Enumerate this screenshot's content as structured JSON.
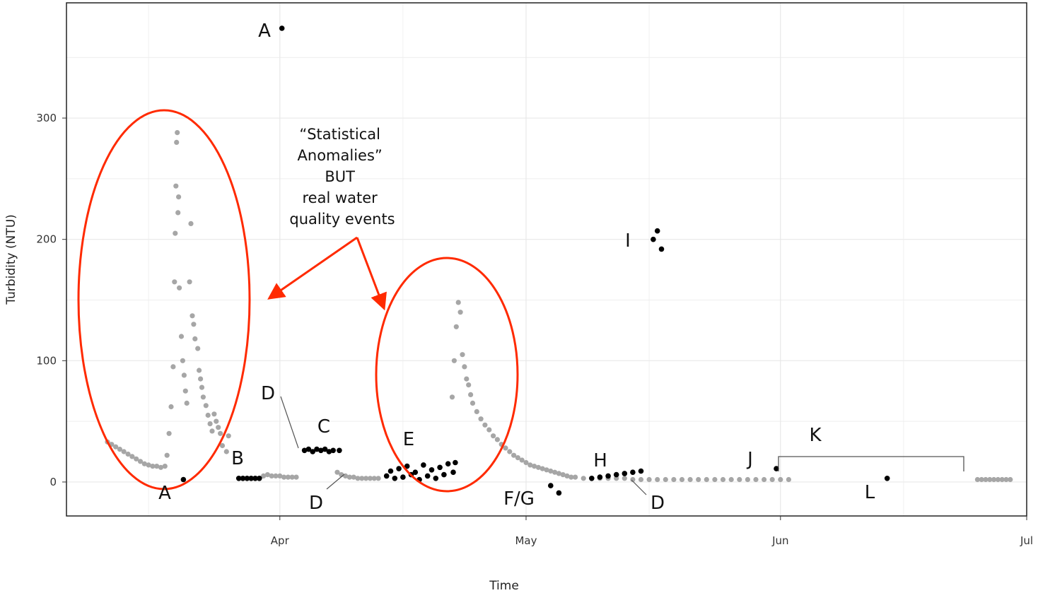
{
  "chart_data": {
    "type": "scatter",
    "xlabel": "Time",
    "ylabel": "Turbidity (NTU)",
    "y_ticks": [
      0,
      100,
      200,
      300
    ],
    "x_ticks": [
      "Apr",
      "May",
      "Jun",
      "Jul"
    ],
    "x_tick_dates": [
      "2018-04-01",
      "2018-05-01",
      "2018-06-01",
      "2018-07-01"
    ],
    "xlim": [
      "2018-03-06",
      "2018-07-01"
    ],
    "ylim": [
      -28,
      395
    ],
    "grid": true,
    "colors": {
      "normal": "#a6a6a6",
      "anomaly": "#000000",
      "highlight": "#ff2a00"
    },
    "series": [
      {
        "role": "normal",
        "color": "#a6a6a6",
        "points": [
          [
            "2018-03-11",
            33
          ],
          [
            "2018-03-11T12:00",
            31
          ],
          [
            "2018-03-12",
            29
          ],
          [
            "2018-03-12T12:00",
            27
          ],
          [
            "2018-03-13",
            25
          ],
          [
            "2018-03-13T12:00",
            23
          ],
          [
            "2018-03-14",
            21
          ],
          [
            "2018-03-14T12:00",
            19
          ],
          [
            "2018-03-15",
            17
          ],
          [
            "2018-03-15T12:00",
            15
          ],
          [
            "2018-03-16",
            14
          ],
          [
            "2018-03-16T12:00",
            13
          ],
          [
            "2018-03-17",
            13
          ],
          [
            "2018-03-17T12:00",
            12
          ],
          [
            "2018-03-18",
            13
          ],
          [
            "2018-03-18T06:00",
            22
          ],
          [
            "2018-03-18T12:00",
            40
          ],
          [
            "2018-03-18T18:00",
            62
          ],
          [
            "2018-03-19",
            95
          ],
          [
            "2018-03-19T04:00",
            165
          ],
          [
            "2018-03-19T06:00",
            205
          ],
          [
            "2018-03-19T08:00",
            244
          ],
          [
            "2018-03-19T10:00",
            280
          ],
          [
            "2018-03-19T12:00",
            288
          ],
          [
            "2018-03-19T14:00",
            222
          ],
          [
            "2018-03-19T16:00",
            235
          ],
          [
            "2018-03-19T18:00",
            160
          ],
          [
            "2018-03-20",
            120
          ],
          [
            "2018-03-20T04:00",
            100
          ],
          [
            "2018-03-20T08:00",
            88
          ],
          [
            "2018-03-20T12:00",
            75
          ],
          [
            "2018-03-20T16:00",
            65
          ],
          [
            "2018-03-21",
            165
          ],
          [
            "2018-03-21T04:00",
            213
          ],
          [
            "2018-03-21T08:00",
            137
          ],
          [
            "2018-03-21T12:00",
            130
          ],
          [
            "2018-03-21T16:00",
            118
          ],
          [
            "2018-03-22",
            110
          ],
          [
            "2018-03-22T04:00",
            92
          ],
          [
            "2018-03-22T08:00",
            85
          ],
          [
            "2018-03-22T12:00",
            78
          ],
          [
            "2018-03-22T16:00",
            70
          ],
          [
            "2018-03-23",
            63
          ],
          [
            "2018-03-23T06:00",
            55
          ],
          [
            "2018-03-23T12:00",
            48
          ],
          [
            "2018-03-23T18:00",
            42
          ],
          [
            "2018-03-24",
            56
          ],
          [
            "2018-03-24T06:00",
            50
          ],
          [
            "2018-03-24T12:00",
            45
          ],
          [
            "2018-03-24T18:00",
            40
          ],
          [
            "2018-03-25",
            30
          ],
          [
            "2018-03-25T12:00",
            25
          ],
          [
            "2018-03-25T18:00",
            38
          ],
          [
            "2018-03-30",
            5
          ],
          [
            "2018-03-30T12:00",
            6
          ],
          [
            "2018-03-31",
            5
          ],
          [
            "2018-03-31T12:00",
            5
          ],
          [
            "2018-04-01",
            5
          ],
          [
            "2018-04-01T12:00",
            4
          ],
          [
            "2018-04-02",
            4
          ],
          [
            "2018-04-02T12:00",
            4
          ],
          [
            "2018-04-03",
            4
          ],
          [
            "2018-04-08",
            8
          ],
          [
            "2018-04-08T12:00",
            6
          ],
          [
            "2018-04-09",
            5
          ],
          [
            "2018-04-09T12:00",
            4
          ],
          [
            "2018-04-10",
            4
          ],
          [
            "2018-04-10T12:00",
            3
          ],
          [
            "2018-04-11",
            3
          ],
          [
            "2018-04-11T12:00",
            3
          ],
          [
            "2018-04-12",
            3
          ],
          [
            "2018-04-12T12:00",
            3
          ],
          [
            "2018-04-13",
            3
          ],
          [
            "2018-04-22",
            70
          ],
          [
            "2018-04-22T06:00",
            100
          ],
          [
            "2018-04-22T12:00",
            128
          ],
          [
            "2018-04-22T18:00",
            148
          ],
          [
            "2018-04-23",
            140
          ],
          [
            "2018-04-23T06:00",
            105
          ],
          [
            "2018-04-23T12:00",
            95
          ],
          [
            "2018-04-23T18:00",
            85
          ],
          [
            "2018-04-24",
            80
          ],
          [
            "2018-04-24T06:00",
            72
          ],
          [
            "2018-04-24T12:00",
            65
          ],
          [
            "2018-04-25",
            58
          ],
          [
            "2018-04-25T12:00",
            52
          ],
          [
            "2018-04-26",
            47
          ],
          [
            "2018-04-26T12:00",
            43
          ],
          [
            "2018-04-27",
            38
          ],
          [
            "2018-04-27T12:00",
            35
          ],
          [
            "2018-04-28",
            31
          ],
          [
            "2018-04-28T12:00",
            28
          ],
          [
            "2018-04-29",
            25
          ],
          [
            "2018-04-29T12:00",
            22
          ],
          [
            "2018-04-30",
            20
          ],
          [
            "2018-04-30T12:00",
            18
          ],
          [
            "2018-05-01",
            16
          ],
          [
            "2018-05-01T12:00",
            14
          ],
          [
            "2018-05-02",
            13
          ],
          [
            "2018-05-02T12:00",
            12
          ],
          [
            "2018-05-03",
            11
          ],
          [
            "2018-05-03T12:00",
            10
          ],
          [
            "2018-05-04",
            9
          ],
          [
            "2018-05-04T12:00",
            8
          ],
          [
            "2018-05-05",
            7
          ],
          [
            "2018-05-05T12:00",
            6
          ],
          [
            "2018-05-06",
            5
          ],
          [
            "2018-05-06T12:00",
            4
          ],
          [
            "2018-05-07",
            4
          ],
          [
            "2018-05-08",
            3
          ],
          [
            "2018-05-09",
            3
          ],
          [
            "2018-05-10",
            3
          ],
          [
            "2018-05-11",
            3
          ],
          [
            "2018-05-12",
            3
          ],
          [
            "2018-05-13",
            3
          ],
          [
            "2018-05-14",
            2
          ],
          [
            "2018-05-15",
            2
          ],
          [
            "2018-05-16",
            2
          ],
          [
            "2018-05-17",
            2
          ],
          [
            "2018-05-18",
            2
          ],
          [
            "2018-05-19",
            2
          ],
          [
            "2018-05-20",
            2
          ],
          [
            "2018-05-21",
            2
          ],
          [
            "2018-05-22",
            2
          ],
          [
            "2018-05-23",
            2
          ],
          [
            "2018-05-24",
            2
          ],
          [
            "2018-05-25",
            2
          ],
          [
            "2018-05-26",
            2
          ],
          [
            "2018-05-27",
            2
          ],
          [
            "2018-05-28",
            2
          ],
          [
            "2018-05-29",
            2
          ],
          [
            "2018-05-30",
            2
          ],
          [
            "2018-05-31",
            2
          ],
          [
            "2018-06-01",
            2
          ],
          [
            "2018-06-02",
            2
          ],
          [
            "2018-06-25",
            2
          ],
          [
            "2018-06-25T12:00",
            2
          ],
          [
            "2018-06-26",
            2
          ],
          [
            "2018-06-26T12:00",
            2
          ],
          [
            "2018-06-27",
            2
          ],
          [
            "2018-06-27T12:00",
            2
          ],
          [
            "2018-06-28",
            2
          ],
          [
            "2018-06-28T12:00",
            2
          ],
          [
            "2018-06-29",
            2
          ]
        ]
      },
      {
        "role": "anomaly",
        "color": "#000000",
        "points": [
          [
            "2018-03-20T06:00",
            2
          ],
          [
            "2018-04-01T06:00",
            374
          ],
          [
            "2018-03-27",
            3
          ],
          [
            "2018-03-27T12:00",
            3
          ],
          [
            "2018-03-28",
            3
          ],
          [
            "2018-03-28T12:00",
            3
          ],
          [
            "2018-03-29",
            3
          ],
          [
            "2018-03-29T12:00",
            3
          ],
          [
            "2018-04-04",
            26
          ],
          [
            "2018-04-04T12:00",
            27
          ],
          [
            "2018-04-05",
            25
          ],
          [
            "2018-04-05T12:00",
            27
          ],
          [
            "2018-04-06",
            26
          ],
          [
            "2018-04-06T12:00",
            27
          ],
          [
            "2018-04-07",
            25
          ],
          [
            "2018-04-07T12:00",
            26
          ],
          [
            "2018-04-08T06:00",
            26
          ],
          [
            "2018-04-14",
            5
          ],
          [
            "2018-04-14T12:00",
            9
          ],
          [
            "2018-04-15",
            3
          ],
          [
            "2018-04-15T12:00",
            11
          ],
          [
            "2018-04-16",
            4
          ],
          [
            "2018-04-16T12:00",
            13
          ],
          [
            "2018-04-17",
            6
          ],
          [
            "2018-04-17T12:00",
            8
          ],
          [
            "2018-04-18",
            2
          ],
          [
            "2018-04-18T12:00",
            14
          ],
          [
            "2018-04-19",
            5
          ],
          [
            "2018-04-19T12:00",
            10
          ],
          [
            "2018-04-20",
            3
          ],
          [
            "2018-04-20T12:00",
            12
          ],
          [
            "2018-04-21",
            6
          ],
          [
            "2018-04-21T12:00",
            15
          ],
          [
            "2018-04-22T03:00",
            8
          ],
          [
            "2018-04-22T09:00",
            16
          ],
          [
            "2018-05-04",
            -3
          ],
          [
            "2018-05-05",
            -9
          ],
          [
            "2018-05-09",
            3
          ],
          [
            "2018-05-10",
            4
          ],
          [
            "2018-05-11",
            5
          ],
          [
            "2018-05-12",
            6
          ],
          [
            "2018-05-13",
            7
          ],
          [
            "2018-05-14",
            8
          ],
          [
            "2018-05-15",
            9
          ],
          [
            "2018-05-16T12:00",
            200
          ],
          [
            "2018-05-17",
            207
          ],
          [
            "2018-05-17T12:00",
            192
          ],
          [
            "2018-05-31T12:00",
            11
          ],
          [
            "2018-06-14",
            3
          ]
        ]
      }
    ],
    "annotations": {
      "letters": [
        "A",
        "A",
        "B",
        "C",
        "D",
        "D",
        "E",
        "F/G",
        "H",
        "I",
        "D",
        "J",
        "K",
        "L"
      ],
      "note_lines": [
        "“Statistical",
        "Anomalies”",
        "BUT",
        "real water",
        "quality events"
      ]
    }
  }
}
